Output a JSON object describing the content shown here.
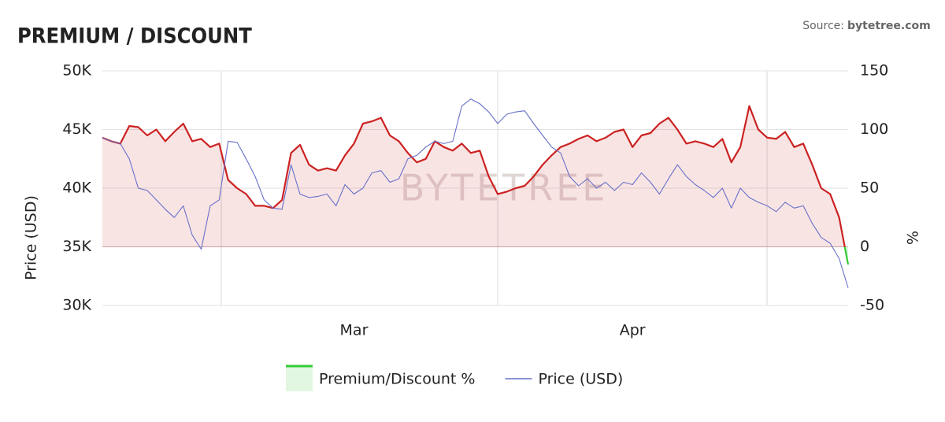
{
  "chart_data": {
    "type": "line",
    "title": "PREMIUM / DISCOUNT",
    "source": "Source:",
    "source_site": "bytetree.com",
    "watermark": "BYTETREE",
    "y_label": "Price (USD)",
    "y2_label": "%",
    "categories": [
      null,
      null,
      null,
      null,
      null,
      null,
      null,
      null,
      null,
      null,
      null,
      null,
      null,
      null,
      null,
      null,
      null,
      null,
      null,
      null,
      null,
      null,
      null,
      null,
      null,
      null,
      null,
      null,
      "Mar",
      null,
      null,
      null,
      null,
      null,
      null,
      null,
      null,
      null,
      null,
      null,
      null,
      null,
      null,
      null,
      null,
      null,
      null,
      null,
      null,
      null,
      null,
      null,
      null,
      null,
      null,
      null,
      null,
      null,
      null,
      "Apr",
      null,
      null,
      null,
      null,
      null,
      null,
      null,
      null,
      null,
      null,
      null,
      null,
      null,
      null,
      null,
      null,
      null,
      null,
      null,
      null,
      null,
      null,
      null,
      null
    ],
    "ylim": [
      30000,
      50000
    ],
    "yticks": [
      {
        "value": 30000,
        "label": "30K"
      },
      {
        "value": 35000,
        "label": "35K"
      },
      {
        "value": 40000,
        "label": "40K"
      },
      {
        "value": 45000,
        "label": "45K"
      },
      {
        "value": 50000,
        "label": "50K"
      }
    ],
    "y2lim": [
      -50,
      150
    ],
    "y2ticks": [
      -50,
      0,
      50,
      100,
      150
    ],
    "grid": true,
    "legend": "bottom",
    "series": [
      {
        "name": "Premium/Discount %",
        "axis": "y2",
        "color": "#cc2222",
        "negative_color": "#33cc33",
        "area": true,
        "values": [
          93,
          90,
          88,
          103,
          102,
          95,
          100,
          90,
          98,
          105,
          90,
          92,
          85,
          88,
          57,
          50,
          45,
          35,
          35,
          33,
          40,
          80,
          87,
          70,
          65,
          67,
          65,
          78,
          88,
          105,
          107,
          110,
          95,
          90,
          80,
          72,
          75,
          90,
          85,
          82,
          88,
          80,
          82,
          60,
          45,
          47,
          50,
          52,
          60,
          70,
          78,
          85,
          88,
          92,
          95,
          90,
          93,
          98,
          100,
          85,
          95,
          97,
          105,
          110,
          100,
          88,
          90,
          88,
          85,
          92,
          72,
          85,
          120,
          100,
          93,
          92,
          98,
          85,
          88,
          70,
          50,
          45,
          25,
          -15
        ]
      },
      {
        "name": "Price (USD)",
        "axis": "y",
        "color": "#6670c8",
        "values": [
          44300,
          44000,
          43800,
          42500,
          40000,
          39800,
          39000,
          38200,
          37500,
          38500,
          36000,
          34800,
          38500,
          39000,
          44000,
          43900,
          42500,
          41000,
          39000,
          38300,
          38200,
          42000,
          39500,
          39200,
          39300,
          39500,
          38500,
          40300,
          39500,
          40000,
          41300,
          41500,
          40500,
          40800,
          42500,
          42800,
          43500,
          44000,
          43800,
          44000,
          47000,
          47600,
          47200,
          46500,
          45500,
          46300,
          46500,
          46600,
          45500,
          44500,
          43500,
          43000,
          41000,
          40200,
          40800,
          40000,
          40500,
          39800,
          40500,
          40300,
          41300,
          40500,
          39500,
          40800,
          42000,
          41000,
          40300,
          39800,
          39200,
          40000,
          38300,
          40000,
          39200,
          38800,
          38500,
          38000,
          38800,
          38300,
          38500,
          37000,
          35800,
          35300,
          34000,
          31500
        ]
      }
    ]
  }
}
